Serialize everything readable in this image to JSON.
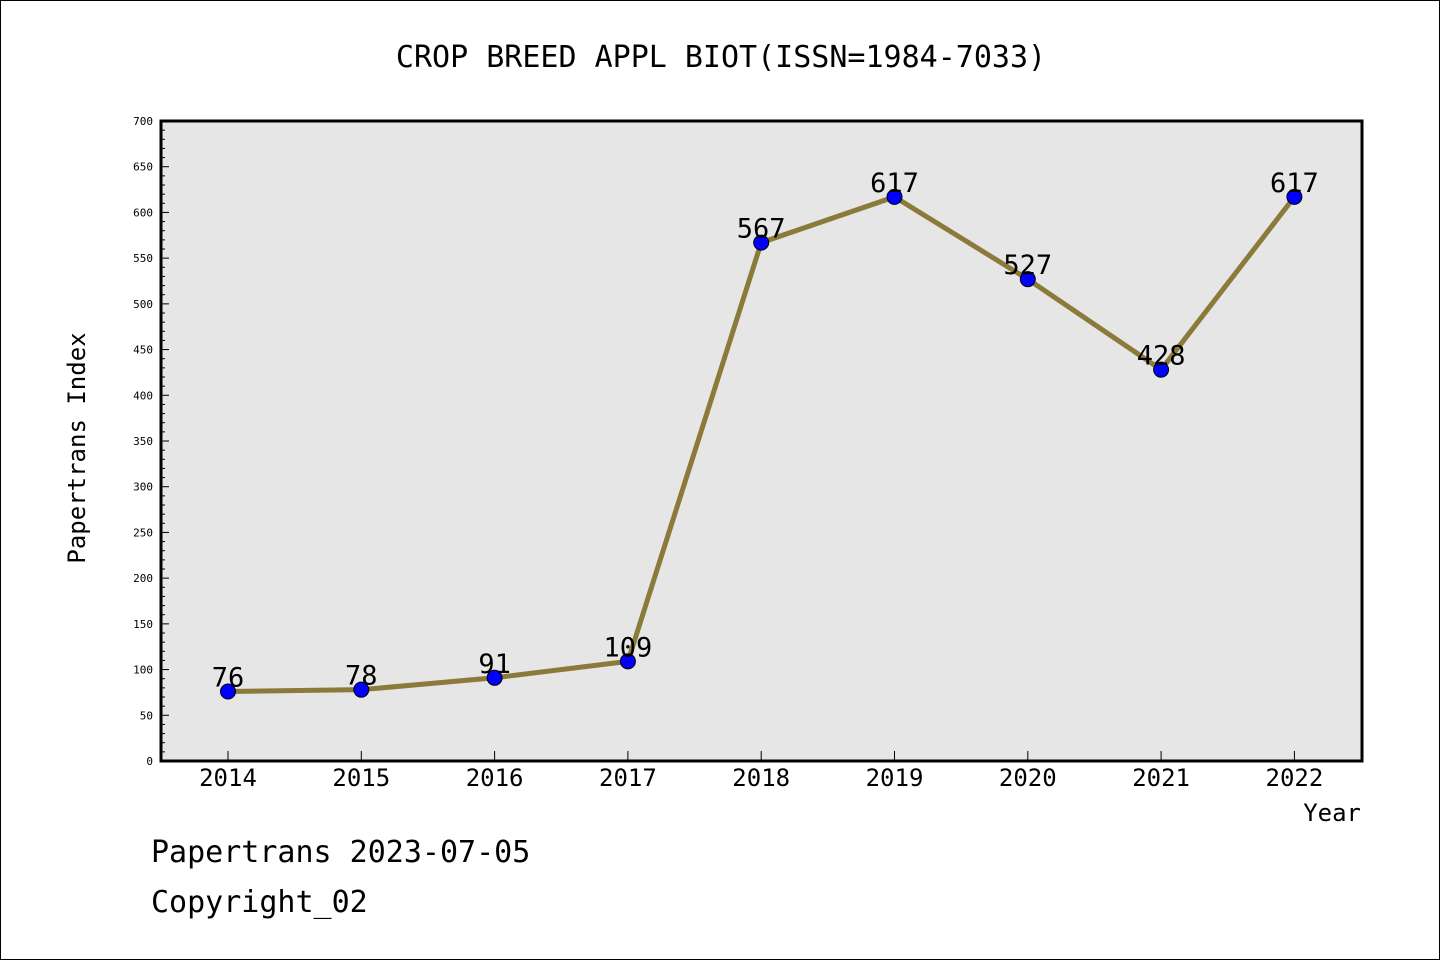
{
  "chart_data": {
    "type": "line",
    "title": "CROP BREED APPL BIOT(ISSN=1984-7033)",
    "xlabel": "Year",
    "ylabel": "Papertrans Index",
    "categories": [
      "2014",
      "2015",
      "2016",
      "2017",
      "2018",
      "2019",
      "2020",
      "2021",
      "2022"
    ],
    "values": [
      76,
      78,
      91,
      109,
      567,
      617,
      527,
      428,
      617
    ],
    "data_labels": [
      "76",
      "78",
      "91",
      "109",
      "567",
      "617",
      "527",
      "428",
      "617"
    ],
    "ylim": [
      0,
      700
    ],
    "yticks": [
      0,
      50,
      100,
      150,
      200,
      250,
      300,
      350,
      400,
      450,
      500,
      550,
      600,
      650,
      700
    ],
    "ytick_labels": [
      "0",
      "50",
      "100",
      "150",
      "200",
      "250",
      "300",
      "350",
      "400",
      "450",
      "500",
      "550",
      "600",
      "650",
      "700"
    ],
    "grid": false,
    "colors": {
      "line": "#8b7a3a",
      "marker": "#0000ff",
      "plot_background": "#e6e6e6"
    }
  },
  "footer": {
    "line1": "Papertrans 2023-07-05",
    "line2": "Copyright_02"
  }
}
